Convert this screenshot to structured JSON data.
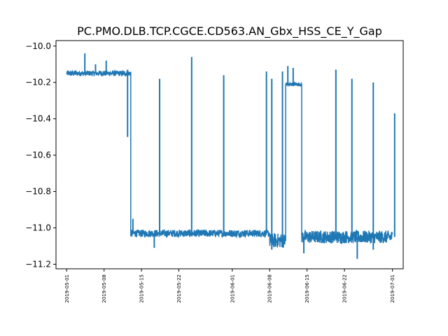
{
  "chart_data": {
    "type": "line",
    "title": "PC.PMO.DLB.TCP.CGCE.CD563.AN_Gbx_HSS_CE_Y_Gap",
    "xlabel": "",
    "ylabel": "",
    "xlim": [
      "2019-04-29",
      "2019-07-03"
    ],
    "ylim": [
      -11.225,
      -9.97
    ],
    "grid": false,
    "series_color": "#1f77b4",
    "x_tick_labels": [
      "2019-05-01",
      "2019-05-08",
      "2019-05-15",
      "2019-05-22",
      "2019-06-01",
      "2019-06-08",
      "2019-06-15",
      "2019-06-22",
      "2019-07-01"
    ],
    "y_ticks": [
      -10.0,
      -10.2,
      -10.4,
      -10.6,
      -10.8,
      -11.0,
      -11.2
    ],
    "y_tick_labels": [
      "−10.0",
      "−10.2",
      "−10.4",
      "−10.6",
      "−10.8",
      "−11.0",
      "−11.2"
    ],
    "series": [
      {
        "segments": [
          {
            "start": "2019-05-01",
            "end": "2019-05-13",
            "base": -10.15,
            "noise": 0.015
          },
          {
            "start": "2019-05-13",
            "end": "2019-06-08",
            "base": -11.03,
            "noise": 0.02
          },
          {
            "start": "2019-06-08",
            "end": "2019-06-11",
            "base": -11.07,
            "noise": 0.04
          },
          {
            "start": "2019-06-11",
            "end": "2019-06-14",
            "base": -10.21,
            "noise": 0.01
          },
          {
            "start": "2019-06-14",
            "end": "2019-07-01",
            "base": -11.05,
            "noise": 0.035
          }
        ],
        "spikes": [
          {
            "date": "2019-05-04",
            "value": -10.04
          },
          {
            "date": "2019-05-06",
            "value": -10.1
          },
          {
            "date": "2019-05-08",
            "value": -10.08
          },
          {
            "date": "2019-05-12",
            "value": -10.13
          },
          {
            "date": "2019-05-12",
            "value": -10.5
          },
          {
            "date": "2019-05-13",
            "value": -10.95
          },
          {
            "date": "2019-05-18",
            "value": -10.18
          },
          {
            "date": "2019-05-24",
            "value": -10.06
          },
          {
            "date": "2019-05-30",
            "value": -10.16
          },
          {
            "date": "2019-06-07",
            "value": -10.14
          },
          {
            "date": "2019-06-08",
            "value": -10.18
          },
          {
            "date": "2019-06-10",
            "value": -10.14
          },
          {
            "date": "2019-06-11",
            "value": -10.11
          },
          {
            "date": "2019-06-12",
            "value": -10.12
          },
          {
            "date": "2019-06-20",
            "value": -10.13
          },
          {
            "date": "2019-06-23",
            "value": -10.18
          },
          {
            "date": "2019-06-27",
            "value": -10.2
          },
          {
            "date": "2019-07-01",
            "value": -10.37
          },
          {
            "date": "2019-05-17",
            "value": -11.11
          },
          {
            "date": "2019-06-08",
            "value": -11.12
          },
          {
            "date": "2019-06-14",
            "value": -11.14
          },
          {
            "date": "2019-06-24",
            "value": -11.17
          },
          {
            "date": "2019-06-27",
            "value": -11.12
          }
        ]
      }
    ]
  }
}
